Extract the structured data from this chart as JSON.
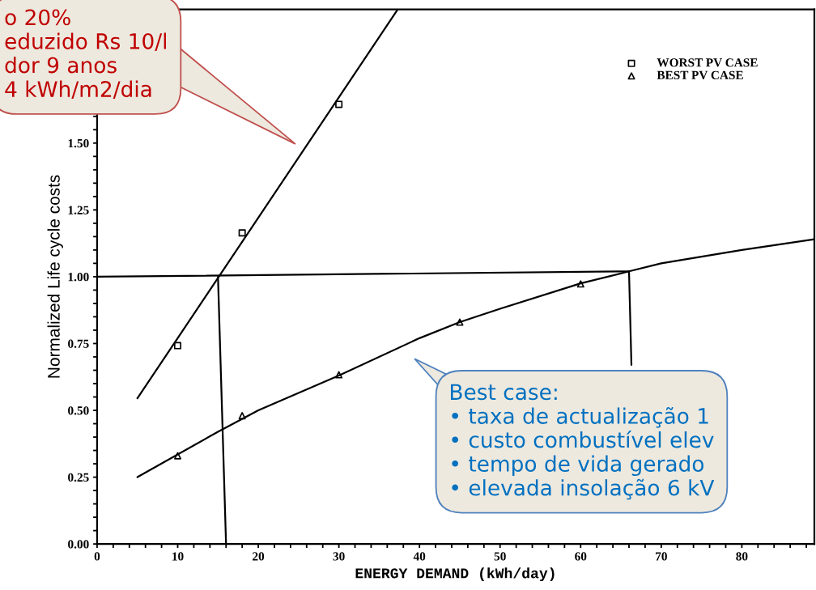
{
  "chart_data": {
    "type": "scatter",
    "xlabel": "ENERGY DEMAND (kWh/day)",
    "ylabel": "Normalized Life cycle costs",
    "xlim": [
      0,
      89
    ],
    "ylim": [
      0,
      2.0
    ],
    "legend": "top right",
    "grid": false,
    "xticks": [
      0,
      {
        "value": 2,
        "label": null
      },
      {
        "value": 4,
        "label": null
      },
      {
        "value": 6,
        "label": null
      },
      {
        "value": 8,
        "label": null
      },
      10,
      {
        "value": 12,
        "label": null
      },
      {
        "value": 14,
        "label": null
      },
      {
        "value": 16,
        "label": null
      },
      {
        "value": 18,
        "label": null
      },
      20,
      {
        "value": 22,
        "label": null
      },
      {
        "value": 24,
        "label": null
      },
      {
        "value": 26,
        "label": null
      },
      {
        "value": 28,
        "label": null
      },
      30,
      {
        "value": 32,
        "label": null
      },
      {
        "value": 34,
        "label": null
      },
      {
        "value": 36,
        "label": null
      },
      {
        "value": 38,
        "label": null
      },
      40,
      {
        "value": 42,
        "label": null
      },
      {
        "value": 44,
        "label": null
      },
      {
        "value": 46,
        "label": null
      },
      {
        "value": 48,
        "label": null
      },
      50,
      {
        "value": 52,
        "label": null
      },
      {
        "value": 54,
        "label": null
      },
      {
        "value": 56,
        "label": null
      },
      {
        "value": 58,
        "label": null
      },
      60,
      {
        "value": 62,
        "label": null
      },
      {
        "value": 64,
        "label": null
      },
      {
        "value": 66,
        "label": null
      },
      {
        "value": 68,
        "label": null
      },
      70,
      {
        "value": 72,
        "label": null
      },
      {
        "value": 74,
        "label": null
      },
      {
        "value": 76,
        "label": null
      },
      {
        "value": 78,
        "label": null
      },
      80,
      {
        "value": 82,
        "label": null
      },
      {
        "value": 84,
        "label": null
      },
      {
        "value": 86,
        "label": null
      },
      {
        "value": 88,
        "label": null
      }
    ],
    "yticks": [
      {
        "value": 0,
        "label": "0.00"
      },
      {
        "value": 0.05,
        "label": null
      },
      {
        "value": 0.1,
        "label": null
      },
      {
        "value": 0.15,
        "label": null
      },
      {
        "value": 0.2,
        "label": null
      },
      {
        "value": 0.25,
        "label": "0.25"
      },
      {
        "value": 0.3,
        "label": null
      },
      {
        "value": 0.35,
        "label": null
      },
      {
        "value": 0.4,
        "label": null
      },
      {
        "value": 0.45,
        "label": null
      },
      {
        "value": 0.5,
        "label": "0.50"
      },
      {
        "value": 0.55,
        "label": null
      },
      {
        "value": 0.6,
        "label": null
      },
      {
        "value": 0.65,
        "label": null
      },
      {
        "value": 0.7,
        "label": null
      },
      {
        "value": 0.75,
        "label": "0.75"
      },
      {
        "value": 0.8,
        "label": null
      },
      {
        "value": 0.85,
        "label": null
      },
      {
        "value": 0.9,
        "label": null
      },
      {
        "value": 0.95,
        "label": null
      },
      {
        "value": 1.0,
        "label": "1.00"
      },
      {
        "value": 1.05,
        "label": null
      },
      {
        "value": 1.1,
        "label": null
      },
      {
        "value": 1.15,
        "label": null
      },
      {
        "value": 1.2,
        "label": null
      },
      {
        "value": 1.25,
        "label": "1.25"
      },
      {
        "value": 1.3,
        "label": null
      },
      {
        "value": 1.35,
        "label": null
      },
      {
        "value": 1.4,
        "label": null
      },
      {
        "value": 1.45,
        "label": null
      },
      {
        "value": 1.5,
        "label": "1.50"
      },
      {
        "value": 1.55,
        "label": null
      },
      {
        "value": 1.6,
        "label": null
      },
      {
        "value": 1.65,
        "label": null
      },
      {
        "value": 1.7,
        "label": null
      },
      {
        "value": 1.75,
        "label": null
      },
      {
        "value": 1.8,
        "label": null
      },
      {
        "value": 1.85,
        "label": null
      },
      {
        "value": 1.9,
        "label": null
      },
      {
        "value": 1.95,
        "label": null
      },
      {
        "value": 2.0,
        "label": null
      }
    ],
    "series": [
      {
        "type": "line",
        "color": "#000000",
        "marker": "none",
        "x": [
          5,
          37.3
        ],
        "values": [
          0.545,
          2.0
        ]
      },
      {
        "type": "line",
        "color": "#000000",
        "marker": "none",
        "x": [
          5,
          15,
          20,
          30,
          40,
          45,
          50,
          60,
          66,
          70,
          75,
          80,
          89
        ],
        "values": [
          0.25,
          0.42,
          0.5,
          0.63,
          0.77,
          0.83,
          0.88,
          0.975,
          1.02,
          1.05,
          1.075,
          1.1,
          1.14
        ]
      },
      {
        "type": "line",
        "color": "#000000",
        "marker": "none",
        "x": [
          0,
          66
        ],
        "values": [
          1.0,
          1.02
        ]
      },
      {
        "type": "line",
        "color": "#000000",
        "marker": "none",
        "x": [
          15,
          16
        ],
        "values": [
          1.0,
          0.0
        ]
      },
      {
        "type": "line",
        "color": "#000000",
        "marker": "none",
        "x": [
          66,
          66.3
        ],
        "values": [
          1.02,
          0.67
        ]
      },
      {
        "name": "WORST PV CASE",
        "color": "#000000",
        "marker": "square",
        "x": [
          10,
          18,
          30
        ],
        "values": [
          0.742,
          1.164,
          1.645
        ]
      },
      {
        "name": "BEST PV CASE",
        "color": "#000000",
        "marker": "triangle",
        "x": [
          10,
          18,
          30,
          45,
          60
        ],
        "values": [
          0.33,
          0.48,
          0.633,
          0.83,
          0.973
        ]
      }
    ],
    "annotations": [
      "o 20%\neduzido Rs 10/l\ndor 9 anos\n4 kWh/m2/dia",
      "Best case:\n• taxa de actualização 1\n• custo combustível elev\n• tempo de vida gerado\n• elevada insolação 6 kV"
    ]
  }
}
